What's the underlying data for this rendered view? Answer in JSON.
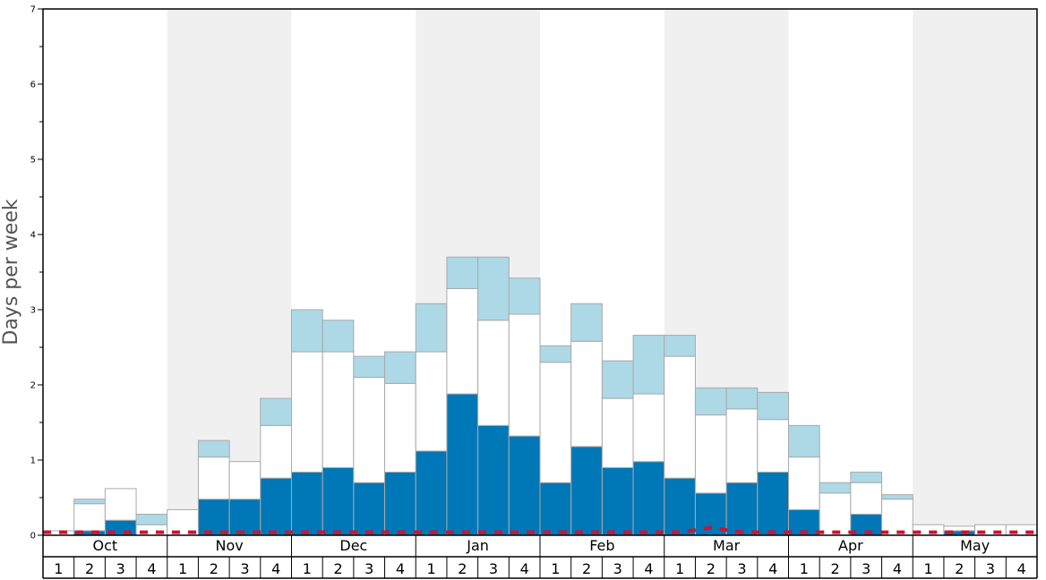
{
  "chart_data": {
    "type": "bar",
    "ylabel": "Days per week",
    "ylim": [
      0,
      7
    ],
    "y_ticks": [
      0,
      1,
      2,
      3,
      4,
      5,
      6,
      7
    ],
    "months": [
      "Oct",
      "Nov",
      "Dec",
      "Jan",
      "Feb",
      "Mar",
      "Apr",
      "May"
    ],
    "weeks": [
      "1",
      "2",
      "3",
      "4"
    ],
    "colors": {
      "bottom": "#0077b6",
      "middle": "#ffffff",
      "top": "#add8e6",
      "bar_stroke": "#aaaaaa",
      "band": "#f0f0f0",
      "line": "#d0122e"
    },
    "series": [
      {
        "values": [
          0,
          0.06,
          0.2,
          0,
          0,
          0.48,
          0.48,
          0.76,
          0.84,
          0.9,
          0.7,
          0.84,
          1.12,
          1.88,
          1.46,
          1.32,
          0.7,
          1.18,
          0.9,
          0.98,
          0.76,
          0.56,
          0.7,
          0.84,
          0.34,
          0,
          0.28,
          0,
          0,
          0.06,
          0,
          0
        ]
      },
      {
        "values": [
          0.06,
          0.36,
          0.42,
          0.14,
          0.34,
          0.56,
          0.5,
          0.7,
          1.6,
          1.54,
          1.4,
          1.18,
          1.32,
          1.4,
          1.4,
          1.62,
          1.6,
          1.4,
          0.92,
          0.9,
          1.62,
          1.04,
          0.98,
          0.7,
          0.7,
          0.56,
          0.42,
          0.48,
          0.14,
          0.06,
          0.14,
          0.14
        ]
      },
      {
        "values": [
          0,
          0.06,
          0,
          0.14,
          0,
          0.22,
          0,
          0.36,
          0.56,
          0.42,
          0.28,
          0.42,
          0.64,
          0.42,
          0.84,
          0.48,
          0.22,
          0.5,
          0.5,
          0.78,
          0.28,
          0.36,
          0.28,
          0.36,
          0.42,
          0.14,
          0.14,
          0.06,
          0,
          0,
          0,
          0
        ]
      },
      {
        "type": "line",
        "values": [
          0.04,
          0.04,
          0.04,
          0.04,
          0.04,
          0.04,
          0.04,
          0.04,
          0.04,
          0.04,
          0.04,
          0.04,
          0.04,
          0.04,
          0.04,
          0.04,
          0.04,
          0.04,
          0.04,
          0.04,
          0.04,
          0.1,
          0.04,
          0.04,
          0.04,
          0.04,
          0.04,
          0.04,
          0.04,
          0.04,
          0.04,
          0.04
        ]
      }
    ]
  }
}
